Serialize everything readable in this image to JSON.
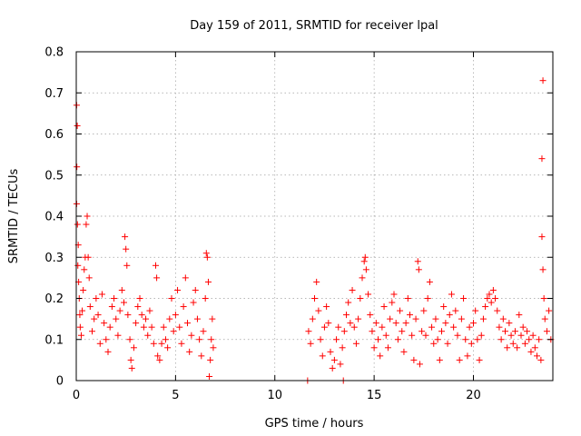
{
  "chart_data": {
    "type": "scatter",
    "title": "Day 159 of 2011, SRMTID for receiver lpal",
    "xlabel": "GPS time / hours",
    "ylabel": "SRMTID / TECUs",
    "xlim": [
      0,
      24
    ],
    "ylim": [
      0,
      0.8
    ],
    "x_ticks": [
      0,
      5,
      10,
      15,
      20
    ],
    "x_tick_labels": [
      "0",
      "5",
      "10",
      "15",
      "20"
    ],
    "y_ticks": [
      0,
      0.1,
      0.2,
      0.3,
      0.4,
      0.5,
      0.6,
      0.7,
      0.8
    ],
    "y_tick_labels": [
      "0",
      "0.1",
      "0.2",
      "0.3",
      "0.4",
      "0.5",
      "0.6",
      "0.7",
      "0.8"
    ],
    "grid": true,
    "marker": "+",
    "marker_color": "#ff0000",
    "series": [
      {
        "name": "SRMTID",
        "points": [
          [
            0.02,
            0.67
          ],
          [
            0.05,
            0.62
          ],
          [
            0.03,
            0.52
          ],
          [
            0.02,
            0.43
          ],
          [
            0.06,
            0.38
          ],
          [
            0.1,
            0.33
          ],
          [
            0.08,
            0.28
          ],
          [
            0.12,
            0.24
          ],
          [
            0.15,
            0.2
          ],
          [
            0.18,
            0.16
          ],
          [
            0.2,
            0.13
          ],
          [
            0.25,
            0.11
          ],
          [
            0.3,
            0.17
          ],
          [
            0.35,
            0.22
          ],
          [
            0.4,
            0.27
          ],
          [
            0.45,
            0.3
          ],
          [
            0.5,
            0.38
          ],
          [
            0.55,
            0.4
          ],
          [
            0.6,
            0.3
          ],
          [
            0.65,
            0.25
          ],
          [
            0.7,
            0.18
          ],
          [
            0.8,
            0.12
          ],
          [
            0.9,
            0.15
          ],
          [
            1.0,
            0.2
          ],
          [
            1.1,
            0.16
          ],
          [
            1.2,
            0.09
          ],
          [
            1.3,
            0.21
          ],
          [
            1.4,
            0.14
          ],
          [
            1.5,
            0.1
          ],
          [
            1.6,
            0.07
          ],
          [
            1.7,
            0.13
          ],
          [
            1.8,
            0.18
          ],
          [
            1.9,
            0.2
          ],
          [
            2.0,
            0.15
          ],
          [
            2.1,
            0.11
          ],
          [
            2.2,
            0.17
          ],
          [
            2.3,
            0.22
          ],
          [
            2.4,
            0.19
          ],
          [
            2.45,
            0.35
          ],
          [
            2.5,
            0.32
          ],
          [
            2.55,
            0.28
          ],
          [
            2.6,
            0.16
          ],
          [
            2.7,
            0.1
          ],
          [
            2.75,
            0.05
          ],
          [
            2.8,
            0.03
          ],
          [
            2.9,
            0.08
          ],
          [
            3.0,
            0.14
          ],
          [
            3.1,
            0.18
          ],
          [
            3.2,
            0.2
          ],
          [
            3.3,
            0.16
          ],
          [
            3.4,
            0.13
          ],
          [
            3.5,
            0.15
          ],
          [
            3.6,
            0.11
          ],
          [
            3.7,
            0.17
          ],
          [
            3.8,
            0.13
          ],
          [
            3.9,
            0.09
          ],
          [
            4.0,
            0.28
          ],
          [
            4.05,
            0.25
          ],
          [
            4.1,
            0.06
          ],
          [
            4.2,
            0.05
          ],
          [
            4.3,
            0.09
          ],
          [
            4.4,
            0.13
          ],
          [
            4.5,
            0.1
          ],
          [
            4.6,
            0.08
          ],
          [
            4.7,
            0.15
          ],
          [
            4.8,
            0.2
          ],
          [
            4.9,
            0.12
          ],
          [
            5.0,
            0.16
          ],
          [
            5.1,
            0.22
          ],
          [
            5.2,
            0.13
          ],
          [
            5.3,
            0.09
          ],
          [
            5.4,
            0.18
          ],
          [
            5.5,
            0.25
          ],
          [
            5.6,
            0.14
          ],
          [
            5.7,
            0.07
          ],
          [
            5.8,
            0.11
          ],
          [
            5.9,
            0.19
          ],
          [
            6.0,
            0.22
          ],
          [
            6.1,
            0.15
          ],
          [
            6.2,
            0.1
          ],
          [
            6.3,
            0.06
          ],
          [
            6.4,
            0.12
          ],
          [
            6.5,
            0.2
          ],
          [
            6.55,
            0.31
          ],
          [
            6.6,
            0.3
          ],
          [
            6.65,
            0.24
          ],
          [
            6.7,
            0.01
          ],
          [
            6.75,
            0.05
          ],
          [
            6.8,
            0.1
          ],
          [
            6.85,
            0.15
          ],
          [
            6.9,
            0.08
          ],
          [
            11.65,
            0.0
          ],
          [
            13.45,
            0.0
          ],
          [
            11.7,
            0.12
          ],
          [
            11.8,
            0.09
          ],
          [
            11.9,
            0.15
          ],
          [
            12.0,
            0.2
          ],
          [
            12.1,
            0.24
          ],
          [
            12.2,
            0.17
          ],
          [
            12.3,
            0.1
          ],
          [
            12.4,
            0.06
          ],
          [
            12.5,
            0.13
          ],
          [
            12.6,
            0.18
          ],
          [
            12.7,
            0.14
          ],
          [
            12.8,
            0.07
          ],
          [
            12.9,
            0.03
          ],
          [
            13.0,
            0.05
          ],
          [
            13.1,
            0.1
          ],
          [
            13.2,
            0.13
          ],
          [
            13.3,
            0.04
          ],
          [
            13.4,
            0.08
          ],
          [
            13.5,
            0.12
          ],
          [
            13.6,
            0.16
          ],
          [
            13.7,
            0.19
          ],
          [
            13.8,
            0.14
          ],
          [
            13.9,
            0.22
          ],
          [
            14.0,
            0.13
          ],
          [
            14.1,
            0.09
          ],
          [
            14.2,
            0.15
          ],
          [
            14.3,
            0.2
          ],
          [
            14.4,
            0.25
          ],
          [
            14.5,
            0.29
          ],
          [
            14.55,
            0.3
          ],
          [
            14.6,
            0.27
          ],
          [
            14.7,
            0.21
          ],
          [
            14.8,
            0.16
          ],
          [
            14.9,
            0.12
          ],
          [
            15.0,
            0.08
          ],
          [
            15.1,
            0.14
          ],
          [
            15.2,
            0.1
          ],
          [
            15.3,
            0.06
          ],
          [
            15.4,
            0.13
          ],
          [
            15.5,
            0.18
          ],
          [
            15.6,
            0.11
          ],
          [
            15.7,
            0.08
          ],
          [
            15.8,
            0.15
          ],
          [
            15.9,
            0.19
          ],
          [
            16.0,
            0.21
          ],
          [
            16.1,
            0.14
          ],
          [
            16.2,
            0.1
          ],
          [
            16.3,
            0.17
          ],
          [
            16.4,
            0.12
          ],
          [
            16.5,
            0.07
          ],
          [
            16.6,
            0.14
          ],
          [
            16.7,
            0.2
          ],
          [
            16.8,
            0.16
          ],
          [
            16.9,
            0.11
          ],
          [
            17.0,
            0.05
          ],
          [
            17.1,
            0.15
          ],
          [
            17.2,
            0.29
          ],
          [
            17.25,
            0.27
          ],
          [
            17.3,
            0.04
          ],
          [
            17.4,
            0.12
          ],
          [
            17.5,
            0.17
          ],
          [
            17.6,
            0.11
          ],
          [
            17.7,
            0.2
          ],
          [
            17.8,
            0.24
          ],
          [
            17.9,
            0.13
          ],
          [
            18.0,
            0.09
          ],
          [
            18.1,
            0.15
          ],
          [
            18.2,
            0.1
          ],
          [
            18.3,
            0.05
          ],
          [
            18.4,
            0.12
          ],
          [
            18.5,
            0.18
          ],
          [
            18.6,
            0.14
          ],
          [
            18.7,
            0.09
          ],
          [
            18.8,
            0.16
          ],
          [
            18.9,
            0.21
          ],
          [
            19.0,
            0.13
          ],
          [
            19.1,
            0.17
          ],
          [
            19.2,
            0.11
          ],
          [
            19.3,
            0.05
          ],
          [
            19.4,
            0.15
          ],
          [
            19.5,
            0.2
          ],
          [
            19.6,
            0.1
          ],
          [
            19.7,
            0.06
          ],
          [
            19.8,
            0.13
          ],
          [
            19.9,
            0.09
          ],
          [
            20.0,
            0.14
          ],
          [
            20.1,
            0.17
          ],
          [
            20.2,
            0.1
          ],
          [
            20.3,
            0.05
          ],
          [
            20.4,
            0.11
          ],
          [
            20.5,
            0.15
          ],
          [
            20.6,
            0.18
          ],
          [
            20.7,
            0.2
          ],
          [
            20.8,
            0.21
          ],
          [
            20.9,
            0.19
          ],
          [
            21.0,
            0.22
          ],
          [
            21.1,
            0.2
          ],
          [
            21.2,
            0.17
          ],
          [
            21.3,
            0.13
          ],
          [
            21.4,
            0.1
          ],
          [
            21.5,
            0.15
          ],
          [
            21.6,
            0.12
          ],
          [
            21.7,
            0.08
          ],
          [
            21.8,
            0.14
          ],
          [
            21.9,
            0.11
          ],
          [
            22.0,
            0.09
          ],
          [
            22.1,
            0.12
          ],
          [
            22.2,
            0.08
          ],
          [
            22.3,
            0.16
          ],
          [
            22.4,
            0.11
          ],
          [
            22.5,
            0.13
          ],
          [
            22.6,
            0.09
          ],
          [
            22.7,
            0.12
          ],
          [
            22.8,
            0.1
          ],
          [
            22.9,
            0.07
          ],
          [
            23.0,
            0.11
          ],
          [
            23.1,
            0.08
          ],
          [
            23.2,
            0.06
          ],
          [
            23.3,
            0.1
          ],
          [
            23.4,
            0.05
          ],
          [
            23.45,
            0.35
          ],
          [
            23.5,
            0.73
          ],
          [
            23.45,
            0.54
          ],
          [
            23.5,
            0.27
          ],
          [
            23.55,
            0.2
          ],
          [
            23.6,
            0.15
          ],
          [
            23.7,
            0.12
          ],
          [
            23.8,
            0.17
          ],
          [
            23.9,
            0.1
          ]
        ]
      }
    ]
  }
}
